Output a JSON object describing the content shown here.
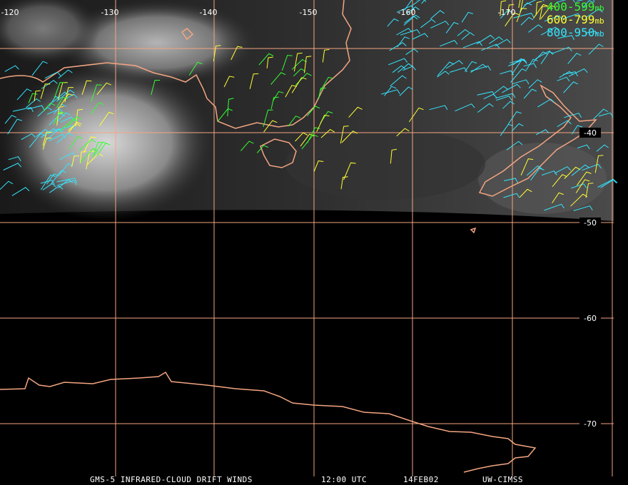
{
  "map": {
    "longitude_labels": [
      "-120",
      "-130",
      "-140",
      "-150",
      "-160",
      "-170"
    ],
    "latitude_labels": [
      "-40",
      "-50",
      "-60",
      "-70"
    ],
    "legend": [
      {
        "label": "400-599",
        "unit": "mb",
        "color": "#33ff33"
      },
      {
        "label": "600-799",
        "unit": "mb",
        "color": "#ffff33"
      },
      {
        "label": "800-950",
        "unit": "mb",
        "color": "#33e6ff"
      }
    ],
    "footer": [
      "GMS-5 INFRARED-CLOUD DRIFT WINDS",
      "12:00 UTC",
      "14FEB02",
      "UW-CIMSS"
    ]
  }
}
